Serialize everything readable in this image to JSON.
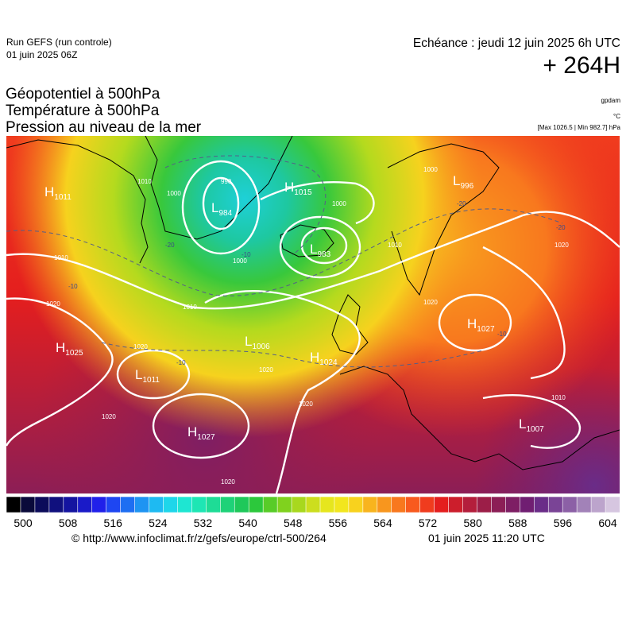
{
  "header": {
    "run_title": "Run GEFS (run controle)",
    "run_date": "01 juin 2025 06Z",
    "echeance": "Echéance : jeudi 12 juin 2025 6h UTC",
    "horizon": "+ 264H"
  },
  "parameters": [
    "Géopotentiel à 500hPa",
    "Température à 500hPa",
    "Pression au niveau de la mer"
  ],
  "units": {
    "geopotential": "gpdam",
    "temperature": "°C",
    "pressure": "[Max 1026.5 | Min 982.7] hPa"
  },
  "pressure_centers": [
    {
      "type": "H",
      "value": "1011"
    },
    {
      "type": "L",
      "value": "984"
    },
    {
      "type": "H",
      "value": "1015"
    },
    {
      "type": "L",
      "value": "983"
    },
    {
      "type": "L",
      "value": "996"
    },
    {
      "type": "H",
      "value": "1025"
    },
    {
      "type": "L",
      "value": "1006"
    },
    {
      "type": "L",
      "value": "1011"
    },
    {
      "type": "H",
      "value": "1024"
    },
    {
      "type": "H",
      "value": "1027"
    },
    {
      "type": "H",
      "value": "1027"
    },
    {
      "type": "L",
      "value": "1007"
    }
  ],
  "isobar_labels": [
    "1010",
    "1000",
    "990",
    "1000",
    "1010",
    "1000",
    "1020",
    "1020",
    "1020",
    "1010",
    "1020",
    "1020",
    "1020",
    "1000",
    "1010",
    "1020",
    "1020",
    "1010"
  ],
  "temperature_labels": [
    "-10",
    "-20",
    "-10",
    "-20",
    "-20",
    "-10",
    "-10"
  ],
  "legend": {
    "colors": [
      "#000000",
      "#0a0a3a",
      "#0c0c5a",
      "#10107e",
      "#1414a0",
      "#1a1ac8",
      "#2020ea",
      "#1e46f2",
      "#1e6ef2",
      "#1e94f2",
      "#1ebaf2",
      "#1ed6ea",
      "#1ee6d2",
      "#1ee6b4",
      "#1edc96",
      "#1ed278",
      "#1ec85a",
      "#2cc83c",
      "#58cc28",
      "#80d21e",
      "#a8d81e",
      "#ccde1e",
      "#e6e61e",
      "#f2e61e",
      "#f8d21e",
      "#f8b41e",
      "#f8961e",
      "#f8781e",
      "#f85a1e",
      "#f03c1e",
      "#e41e1e",
      "#cc1e2c",
      "#b41e3c",
      "#9c1e48",
      "#8c1e56",
      "#7e1e64",
      "#701e72",
      "#6a2c88",
      "#7a4496",
      "#8c60a6",
      "#a282b8",
      "#bca4cc",
      "#d6c6e0"
    ],
    "ticks": [
      "500",
      "508",
      "516",
      "524",
      "532",
      "540",
      "548",
      "556",
      "564",
      "572",
      "580",
      "588",
      "596",
      "604"
    ]
  },
  "footer": {
    "source": "© http://www.infoclimat.fr/z/gefs/europe/ctrl-500/264",
    "created": "01 juin 2025 11:20 UTC"
  }
}
